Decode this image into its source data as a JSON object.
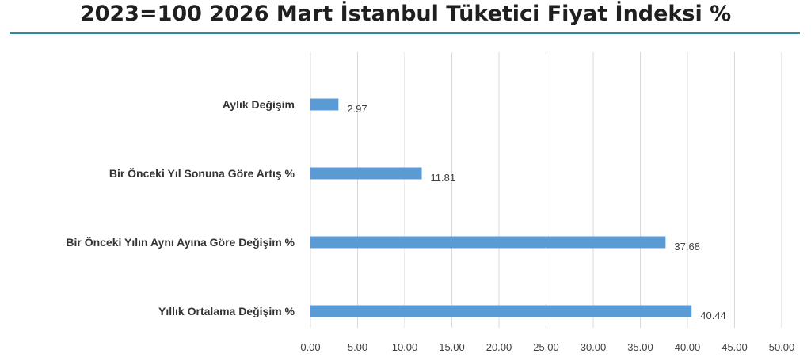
{
  "colors": {
    "bar": "#5b9bd5",
    "rule": "#2e8b9a",
    "grid": "#d9d9d9"
  },
  "chart_data": {
    "type": "bar",
    "orientation": "horizontal",
    "title": "2023=100 2026 Mart İstanbul Tüketici Fiyat İndeksi %",
    "categories": [
      "Aylık Değişim",
      "Bir Önceki Yıl Sonuna Göre Artış %",
      "Bir Önceki Yılın Aynı Ayına Göre Değişim %",
      "Yıllık Ortalama Değişim %"
    ],
    "values": [
      2.97,
      11.81,
      37.68,
      40.44
    ],
    "value_labels": [
      "2.97",
      "11.81",
      "37.68",
      "40.44"
    ],
    "xlim": [
      0,
      50
    ],
    "xticks": [
      "0.00",
      "5.00",
      "10.00",
      "15.00",
      "20.00",
      "25.00",
      "30.00",
      "35.00",
      "40.00",
      "45.00",
      "50.00"
    ],
    "grid": true,
    "legend": "none"
  }
}
